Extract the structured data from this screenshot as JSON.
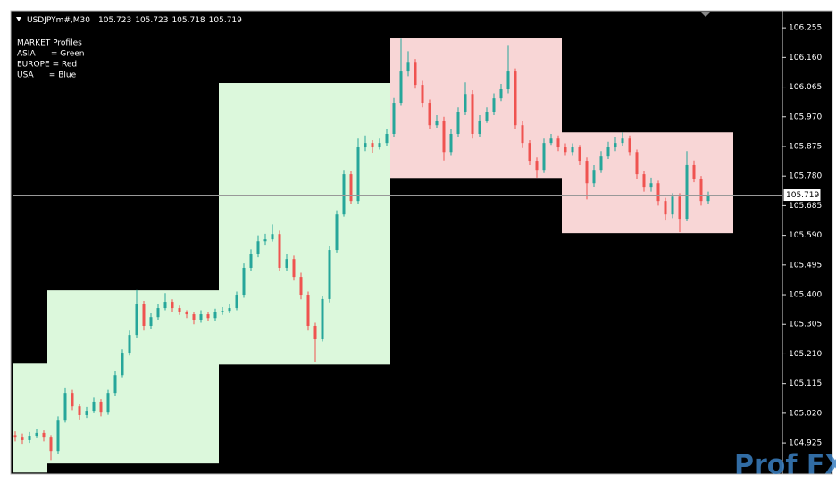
{
  "chart_data": {
    "type": "candlestick",
    "symbol": "USDJPYm#,M30",
    "ohlc": [
      105.723,
      105.723,
      105.718,
      105.719
    ],
    "legend": [
      "MARKET Profiles",
      "ASIA      = Green",
      "EUROPE = Red",
      "USA      = Blue"
    ],
    "bid": 105.719,
    "watermark": "Prof FX",
    "up_color": "#26a69a",
    "down_color": "#ef5350",
    "ylim": [
      104.828,
      106.304
    ],
    "yticks": [
      106.255,
      {
        "value": 106.16,
        "label": "106.160"
      },
      106.065,
      {
        "value": 105.97,
        "label": "105.970"
      },
      105.875,
      {
        "value": 105.78,
        "label": "105.780"
      },
      105.685,
      {
        "value": 105.59,
        "label": "105.590"
      },
      105.495,
      {
        "value": 105.4,
        "label": "105.400"
      },
      105.305,
      {
        "value": 105.21,
        "label": "105.210"
      },
      105.115,
      {
        "value": 105.02,
        "label": "105.020"
      },
      104.925
    ],
    "boxes": [
      {
        "start": 0,
        "end": 4,
        "high": 105.179,
        "low": 104.83,
        "color": "#dcf8dc"
      },
      {
        "start": 5,
        "end": 28,
        "high": 105.414,
        "low": 104.859,
        "color": "#dcf8dc"
      },
      {
        "start": 29,
        "end": 52,
        "high": 106.078,
        "low": 105.176,
        "color": "#dcf8dc"
      },
      {
        "start": 53,
        "end": 76,
        "high": 106.221,
        "low": 105.774,
        "color": "#f8d6d6"
      },
      {
        "start": 77,
        "end": 100,
        "high": 105.92,
        "low": 105.597,
        "color": "#f8d6d6"
      }
    ],
    "candles": [
      [
        104.95,
        104.962,
        104.93,
        104.942
      ],
      [
        104.942,
        104.955,
        104.922,
        104.934
      ],
      [
        104.934,
        104.96,
        104.925,
        104.948
      ],
      [
        104.948,
        104.97,
        104.94,
        104.957
      ],
      [
        104.957,
        104.965,
        104.93,
        104.942
      ],
      [
        104.942,
        104.95,
        104.87,
        104.899
      ],
      [
        104.899,
        105.01,
        104.89,
        104.999
      ],
      [
        104.999,
        105.1,
        104.99,
        105.085
      ],
      [
        105.085,
        105.095,
        105.03,
        105.042
      ],
      [
        105.042,
        105.05,
        105.0,
        105.014
      ],
      [
        105.014,
        105.04,
        105.005,
        105.028
      ],
      [
        105.028,
        105.07,
        105.02,
        105.057
      ],
      [
        105.057,
        105.065,
        105.01,
        105.022
      ],
      [
        105.022,
        105.095,
        105.015,
        105.085
      ],
      [
        105.085,
        105.155,
        105.075,
        105.142
      ],
      [
        105.142,
        105.225,
        105.135,
        105.214
      ],
      [
        105.214,
        105.285,
        105.205,
        105.271
      ],
      [
        105.271,
        105.415,
        105.26,
        105.371
      ],
      [
        105.371,
        105.38,
        105.285,
        105.3
      ],
      [
        105.3,
        105.34,
        105.29,
        105.328
      ],
      [
        105.328,
        105.37,
        105.32,
        105.357
      ],
      [
        105.357,
        105.405,
        105.35,
        105.377
      ],
      [
        105.377,
        105.385,
        105.345,
        105.357
      ],
      [
        105.357,
        105.365,
        105.335,
        105.343
      ],
      [
        105.343,
        105.35,
        105.325,
        105.337
      ],
      [
        105.337,
        105.345,
        105.305,
        105.32
      ],
      [
        105.32,
        105.35,
        105.31,
        105.337
      ],
      [
        105.337,
        105.345,
        105.315,
        105.325
      ],
      [
        105.325,
        105.355,
        105.315,
        105.343
      ],
      [
        105.343,
        105.36,
        105.335,
        105.348
      ],
      [
        105.348,
        105.37,
        105.34,
        105.357
      ],
      [
        105.357,
        105.41,
        105.35,
        105.4
      ],
      [
        105.4,
        105.5,
        105.39,
        105.486
      ],
      [
        105.486,
        105.545,
        105.475,
        105.529
      ],
      [
        105.529,
        105.59,
        105.52,
        105.571
      ],
      [
        105.571,
        105.595,
        105.56,
        105.577
      ],
      [
        105.577,
        105.625,
        105.57,
        105.594
      ],
      [
        105.594,
        105.605,
        105.475,
        105.486
      ],
      [
        105.486,
        105.53,
        105.475,
        105.514
      ],
      [
        105.514,
        105.525,
        105.445,
        105.457
      ],
      [
        105.457,
        105.47,
        105.385,
        105.4
      ],
      [
        105.4,
        105.41,
        105.285,
        105.3
      ],
      [
        105.3,
        105.31,
        105.185,
        105.257
      ],
      [
        105.257,
        105.395,
        105.25,
        105.386
      ],
      [
        105.386,
        105.555,
        105.375,
        105.543
      ],
      [
        105.543,
        105.67,
        105.535,
        105.657
      ],
      [
        105.657,
        105.8,
        105.65,
        105.786
      ],
      [
        105.786,
        105.795,
        105.69,
        105.7
      ],
      [
        105.7,
        105.9,
        105.69,
        105.872
      ],
      [
        105.872,
        105.91,
        105.86,
        105.886
      ],
      [
        105.886,
        105.895,
        105.855,
        105.872
      ],
      [
        105.872,
        105.9,
        105.865,
        105.886
      ],
      [
        105.886,
        105.93,
        105.875,
        105.915
      ],
      [
        105.915,
        106.03,
        105.905,
        106.015
      ],
      [
        106.015,
        106.22,
        106.005,
        106.115
      ],
      [
        106.115,
        106.18,
        106.1,
        106.143
      ],
      [
        106.143,
        106.155,
        106.06,
        106.072
      ],
      [
        106.072,
        106.085,
        106.0,
        106.015
      ],
      [
        106.015,
        106.025,
        105.93,
        105.943
      ],
      [
        105.943,
        105.975,
        105.935,
        105.958
      ],
      [
        105.958,
        105.97,
        105.83,
        105.857
      ],
      [
        105.857,
        105.93,
        105.845,
        105.915
      ],
      [
        105.915,
        106.0,
        105.905,
        105.986
      ],
      [
        105.986,
        106.08,
        105.975,
        106.043
      ],
      [
        106.043,
        106.055,
        105.9,
        105.915
      ],
      [
        105.915,
        105.975,
        105.905,
        105.958
      ],
      [
        105.958,
        106.0,
        105.95,
        105.986
      ],
      [
        105.986,
        106.045,
        105.975,
        106.029
      ],
      [
        106.029,
        106.075,
        106.02,
        106.058
      ],
      [
        106.058,
        106.2,
        106.045,
        106.115
      ],
      [
        106.115,
        106.125,
        105.93,
        105.943
      ],
      [
        105.943,
        105.955,
        105.87,
        105.886
      ],
      [
        105.886,
        105.895,
        105.815,
        105.829
      ],
      [
        105.829,
        105.84,
        105.775,
        105.8
      ],
      [
        105.8,
        105.9,
        105.79,
        105.886
      ],
      [
        105.886,
        105.915,
        105.88,
        105.9
      ],
      [
        105.9,
        105.91,
        105.86,
        105.872
      ],
      [
        105.872,
        105.885,
        105.845,
        105.857
      ],
      [
        105.857,
        105.885,
        105.845,
        105.872
      ],
      [
        105.872,
        105.88,
        105.815,
        105.829
      ],
      [
        105.829,
        105.84,
        105.705,
        105.757
      ],
      [
        105.757,
        105.815,
        105.745,
        105.8
      ],
      [
        105.8,
        105.86,
        105.79,
        105.843
      ],
      [
        105.843,
        105.89,
        105.835,
        105.872
      ],
      [
        105.872,
        105.905,
        105.86,
        105.886
      ],
      [
        105.886,
        105.92,
        105.875,
        105.9
      ],
      [
        105.9,
        105.91,
        105.845,
        105.857
      ],
      [
        105.857,
        105.865,
        105.77,
        105.786
      ],
      [
        105.786,
        105.795,
        105.73,
        105.743
      ],
      [
        105.743,
        105.775,
        105.73,
        105.757
      ],
      [
        105.757,
        105.765,
        105.685,
        105.7
      ],
      [
        105.7,
        105.71,
        105.64,
        105.657
      ],
      [
        105.657,
        105.725,
        105.645,
        105.714
      ],
      [
        105.714,
        105.725,
        105.6,
        105.643
      ],
      [
        105.643,
        105.86,
        105.635,
        105.815
      ],
      [
        105.815,
        105.83,
        105.76,
        105.772
      ],
      [
        105.772,
        105.78,
        105.685,
        105.7
      ],
      [
        105.7,
        105.73,
        105.69,
        105.719
      ]
    ]
  }
}
